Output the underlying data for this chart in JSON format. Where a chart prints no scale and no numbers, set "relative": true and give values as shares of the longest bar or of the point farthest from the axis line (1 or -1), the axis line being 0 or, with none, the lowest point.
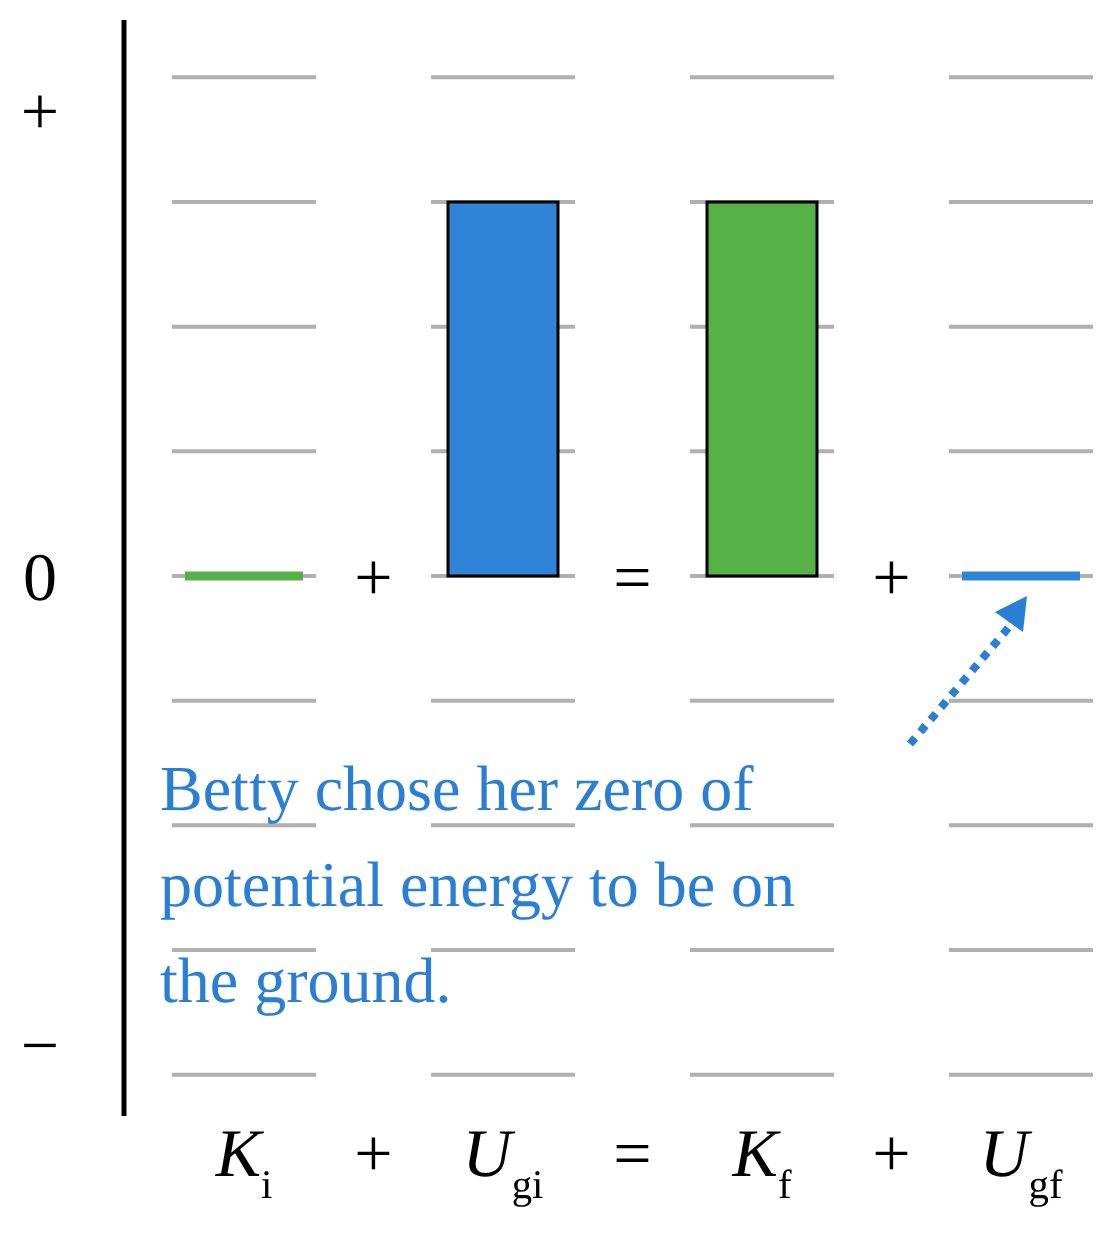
{
  "chart_data": {
    "type": "bar",
    "relative": true,
    "categories": [
      "K$_{i}$",
      "U$_{gi}$",
      "K$_{f}$",
      "U$_{gf}$"
    ],
    "values": [
      0,
      1,
      1,
      0
    ],
    "colors": [
      "#56b146",
      "#2f84d8",
      "#56b146",
      "#2f84d8"
    ],
    "ref_lines": [
      {
        "axis": "y",
        "value": 1.3333,
        "color": "#b0b0b0"
      },
      {
        "axis": "y",
        "value": 1,
        "color": "#b0b0b0"
      },
      {
        "axis": "y",
        "value": 0.6667,
        "color": "#b0b0b0"
      },
      {
        "axis": "y",
        "value": 0.3333,
        "color": "#b0b0b0"
      },
      {
        "axis": "y",
        "value": 0,
        "color": "#b0b0b0"
      },
      {
        "axis": "y",
        "value": -0.3333,
        "color": "#b0b0b0"
      },
      {
        "axis": "y",
        "value": -0.6667,
        "color": "#b0b0b0"
      },
      {
        "axis": "y",
        "value": -1,
        "color": "#b0b0b0"
      },
      {
        "axis": "y",
        "value": -1.3333,
        "color": "#b0b0b0"
      }
    ],
    "annotations": [
      "+",
      "0",
      "−",
      "+",
      "=",
      "+",
      "Betty chose her zero of potential energy to be on the ground."
    ]
  }
}
